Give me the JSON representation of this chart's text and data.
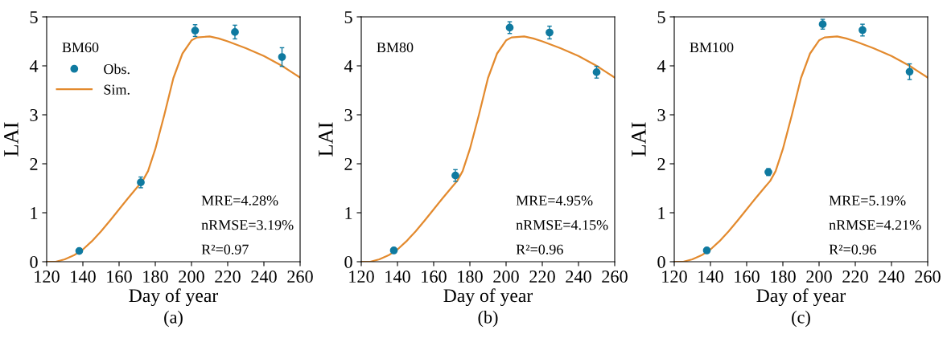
{
  "chart_data": [
    {
      "type": "scatter",
      "title": "BM60",
      "xlabel": "Day of year",
      "ylabel": "LAI",
      "xlim": [
        120,
        260
      ],
      "xticks": [
        120,
        140,
        160,
        180,
        200,
        220,
        240,
        260
      ],
      "ylim": [
        0,
        5
      ],
      "yticks": [
        0,
        1,
        2,
        3,
        4,
        5
      ],
      "legend": "top left",
      "grid": false,
      "annotations": [
        "MRE=4.28%",
        "nRMSE=3.19%",
        "R²=0.97",
        "(a)"
      ],
      "series": [
        {
          "name": "Obs.",
          "marker": "circle",
          "color": "#0f7aa0",
          "x": [
            138,
            172,
            202,
            224,
            250
          ],
          "values": [
            0.22,
            1.62,
            4.72,
            4.69,
            4.18
          ],
          "errors": [
            0.03,
            0.11,
            0.12,
            0.14,
            0.19
          ]
        },
        {
          "name": "Sim.",
          "type": "line",
          "color": "#e38a2e",
          "x": [
            120,
            125,
            130,
            135,
            140,
            145,
            150,
            155,
            160,
            165,
            170,
            173,
            176,
            180,
            185,
            190,
            195,
            200,
            203,
            210,
            215,
            220,
            225,
            230,
            240,
            250,
            255,
            260
          ],
          "values": [
            0,
            0,
            0.05,
            0.13,
            0.25,
            0.42,
            0.62,
            0.84,
            1.07,
            1.3,
            1.52,
            1.65,
            1.85,
            2.3,
            3.0,
            3.75,
            4.25,
            4.52,
            4.58,
            4.6,
            4.56,
            4.5,
            4.43,
            4.36,
            4.2,
            4.0,
            3.88,
            3.76
          ]
        }
      ]
    },
    {
      "type": "scatter",
      "title": "BM80",
      "xlabel": "Day of year",
      "ylabel": "LAI",
      "xlim": [
        120,
        260
      ],
      "xticks": [
        120,
        140,
        160,
        180,
        200,
        220,
        240,
        260
      ],
      "ylim": [
        0,
        5
      ],
      "yticks": [
        0,
        1,
        2,
        3,
        4,
        5
      ],
      "grid": false,
      "annotations": [
        "MRE=4.95%",
        "nRMSE=4.15%",
        "R²=0.96",
        "(b)"
      ],
      "series": [
        {
          "marker": "circle",
          "color": "#0f7aa0",
          "x": [
            138,
            172,
            202,
            224,
            250
          ],
          "values": [
            0.23,
            1.76,
            4.78,
            4.68,
            3.87
          ],
          "errors": [
            0.03,
            0.12,
            0.12,
            0.13,
            0.12
          ]
        },
        {
          "type": "line",
          "color": "#e38a2e",
          "x": [
            120,
            125,
            130,
            135,
            140,
            145,
            150,
            155,
            160,
            165,
            170,
            173,
            176,
            180,
            185,
            190,
            195,
            200,
            203,
            210,
            215,
            220,
            225,
            230,
            240,
            250,
            255,
            260
          ],
          "values": [
            0,
            0,
            0.05,
            0.13,
            0.25,
            0.42,
            0.62,
            0.84,
            1.07,
            1.3,
            1.52,
            1.65,
            1.85,
            2.3,
            3.0,
            3.75,
            4.25,
            4.52,
            4.58,
            4.6,
            4.56,
            4.5,
            4.43,
            4.36,
            4.2,
            4.0,
            3.88,
            3.76
          ]
        }
      ]
    },
    {
      "type": "scatter",
      "title": "BM100",
      "xlabel": "Day of year",
      "ylabel": "LAI",
      "xlim": [
        120,
        260
      ],
      "xticks": [
        120,
        140,
        160,
        180,
        200,
        220,
        240,
        260
      ],
      "ylim": [
        0,
        5
      ],
      "yticks": [
        0,
        1,
        2,
        3,
        4,
        5
      ],
      "grid": false,
      "annotations": [
        "MRE=5.19%",
        "nRMSE=4.21%",
        "R²=0.96",
        "(c)"
      ],
      "series": [
        {
          "marker": "circle",
          "color": "#0f7aa0",
          "x": [
            138,
            172,
            202,
            224,
            250
          ],
          "values": [
            0.23,
            1.83,
            4.85,
            4.73,
            3.88
          ],
          "errors": [
            0.03,
            0.07,
            0.1,
            0.12,
            0.16
          ]
        },
        {
          "type": "line",
          "color": "#e38a2e",
          "x": [
            120,
            125,
            130,
            135,
            140,
            145,
            150,
            155,
            160,
            165,
            170,
            173,
            176,
            180,
            185,
            190,
            195,
            200,
            203,
            210,
            215,
            220,
            225,
            230,
            240,
            250,
            255,
            260
          ],
          "values": [
            0,
            0,
            0.05,
            0.13,
            0.25,
            0.42,
            0.62,
            0.84,
            1.07,
            1.3,
            1.52,
            1.65,
            1.85,
            2.3,
            3.0,
            3.75,
            4.25,
            4.52,
            4.58,
            4.6,
            4.56,
            4.5,
            4.43,
            4.36,
            4.2,
            4.0,
            3.88,
            3.76
          ]
        }
      ]
    }
  ]
}
